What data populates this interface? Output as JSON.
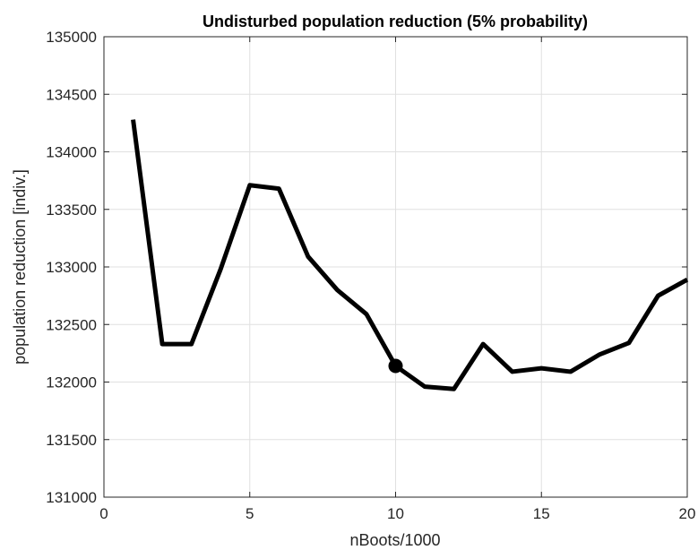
{
  "chart_data": {
    "type": "line",
    "title": "Undisturbed population reduction (5% probability)",
    "xlabel": "nBoots/1000",
    "ylabel": "population reduction [indiv.]",
    "xlim": [
      0,
      20
    ],
    "ylim": [
      131000,
      135000
    ],
    "x_ticks": [
      0,
      5,
      10,
      15,
      20
    ],
    "y_ticks": [
      131000,
      131500,
      132000,
      132500,
      133000,
      133500,
      134000,
      134500,
      135000
    ],
    "grid": true,
    "series": [
      {
        "color": "#000000",
        "x": [
          1,
          2,
          3,
          4,
          5,
          6,
          7,
          8,
          9,
          10,
          11,
          12,
          13,
          14,
          15,
          16,
          17,
          18,
          19,
          20
        ],
        "y": [
          134280,
          132330,
          132330,
          132980,
          133710,
          133680,
          133090,
          132800,
          132590,
          132140,
          131960,
          131940,
          132330,
          132090,
          132120,
          132090,
          132240,
          132340,
          132750,
          132890
        ]
      }
    ],
    "highlight_point": {
      "x": 10,
      "y": 132140
    }
  }
}
